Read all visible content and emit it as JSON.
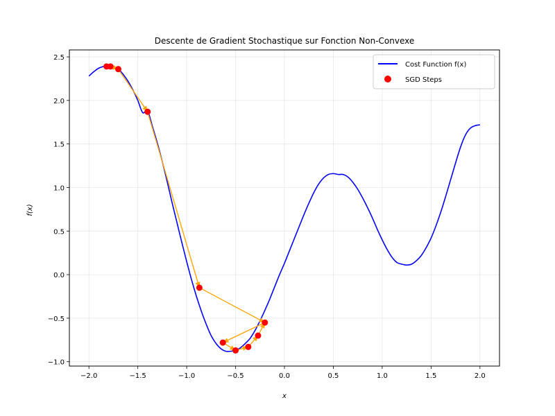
{
  "chart_data": {
    "type": "line",
    "title": "Descente de Gradient Stochastique sur Fonction Non-Convexe",
    "xlabel": "x",
    "ylabel": "f(x)",
    "xlim": [
      -2.2,
      2.2
    ],
    "ylim": [
      -1.05,
      2.58
    ],
    "xticks": [
      "−2.0",
      "−1.5",
      "−1.0",
      "−0.5",
      "0.0",
      "0.5",
      "1.0",
      "1.5",
      "2.0"
    ],
    "xtick_values": [
      -2.0,
      -1.5,
      -1.0,
      -0.5,
      0.0,
      0.5,
      1.0,
      1.5,
      2.0
    ],
    "yticks": [
      "−1.0",
      "−0.5",
      "0.0",
      "0.5",
      "1.0",
      "1.5",
      "2.0",
      "2.5"
    ],
    "ytick_values": [
      -1.0,
      -0.5,
      0.0,
      0.5,
      1.0,
      1.5,
      2.0,
      2.5
    ],
    "grid": true,
    "legend_position": "top-right",
    "series": [
      {
        "name": "Cost Function f(x)",
        "type": "line",
        "color": "#0000ff",
        "x": [
          -2.0,
          -1.95,
          -1.9,
          -1.85,
          -1.8,
          -1.75,
          -1.7,
          -1.65,
          -1.6,
          -1.55,
          -1.5,
          -1.45,
          -1.4,
          -1.35,
          -1.3,
          -1.25,
          -1.2,
          -1.15,
          -1.1,
          -1.05,
          -1.0,
          -0.95,
          -0.9,
          -0.85,
          -0.8,
          -0.75,
          -0.7,
          -0.65,
          -0.6,
          -0.55,
          -0.5,
          -0.45,
          -0.4,
          -0.35,
          -0.3,
          -0.25,
          -0.2,
          -0.15,
          -0.1,
          -0.05,
          0.0,
          0.05,
          0.1,
          0.15,
          0.2,
          0.25,
          0.3,
          0.35,
          0.4,
          0.45,
          0.5,
          0.55,
          0.6,
          0.65,
          0.7,
          0.75,
          0.8,
          0.85,
          0.9,
          0.95,
          1.0,
          1.05,
          1.1,
          1.15,
          1.2,
          1.25,
          1.3,
          1.35,
          1.4,
          1.45,
          1.5,
          1.55,
          1.6,
          1.65,
          1.7,
          1.75,
          1.8,
          1.85,
          1.9,
          1.95,
          2.0
        ],
        "y": [
          2.28,
          2.33,
          2.37,
          2.39,
          2.4,
          2.39,
          2.36,
          2.3,
          2.22,
          2.12,
          2.0,
          1.86,
          1.88,
          1.7,
          1.51,
          1.3,
          1.07,
          0.83,
          0.6,
          0.37,
          0.15,
          -0.06,
          -0.25,
          -0.42,
          -0.57,
          -0.7,
          -0.79,
          -0.85,
          -0.88,
          -0.88,
          -0.87,
          -0.84,
          -0.79,
          -0.73,
          -0.64,
          -0.53,
          -0.41,
          -0.28,
          -0.14,
          0.0,
          0.13,
          0.27,
          0.41,
          0.55,
          0.69,
          0.82,
          0.94,
          1.04,
          1.11,
          1.15,
          1.16,
          1.15,
          1.15,
          1.12,
          1.06,
          0.98,
          0.88,
          0.77,
          0.65,
          0.52,
          0.4,
          0.29,
          0.2,
          0.14,
          0.12,
          0.11,
          0.12,
          0.16,
          0.22,
          0.31,
          0.42,
          0.56,
          0.72,
          0.9,
          1.09,
          1.28,
          1.46,
          1.6,
          1.68,
          1.71,
          1.72
        ]
      },
      {
        "name": "SGD Steps",
        "type": "scatter",
        "color": "#ff0000",
        "x": [
          -1.4,
          -1.7,
          -1.78,
          -1.82,
          -0.87,
          -0.2,
          -0.63,
          -0.5,
          -0.37,
          -0.27
        ],
        "y": [
          1.87,
          2.36,
          2.39,
          2.39,
          -0.15,
          -0.55,
          -0.78,
          -0.87,
          -0.83,
          -0.7
        ]
      }
    ],
    "path": {
      "color": "#ffa500",
      "x": [
        -1.82,
        -1.78,
        -1.7,
        -1.4,
        -0.87,
        -0.2,
        -0.63,
        -0.5,
        -0.37,
        -0.27,
        -0.2
      ],
      "y": [
        2.39,
        2.39,
        2.36,
        1.87,
        -0.15,
        -0.55,
        -0.78,
        -0.87,
        -0.83,
        -0.7,
        -0.55
      ]
    }
  }
}
